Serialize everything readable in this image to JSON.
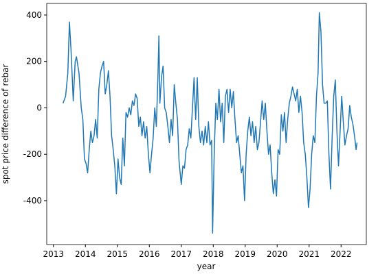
{
  "chart_data": {
    "type": "line",
    "x_label": "year",
    "y_label": "spot price difference of rebar",
    "xlim": [
      2012.79,
      2022.79
    ],
    "ylim": [
      -589,
      450
    ],
    "xticks": [
      2013,
      2014,
      2015,
      2016,
      2017,
      2018,
      2019,
      2020,
      2021,
      2022
    ],
    "yticks": [
      -400,
      -200,
      0,
      200,
      400
    ],
    "grid": false,
    "series": [
      {
        "color": "#1f77b4",
        "x": [
          2013.3,
          2013.38,
          2013.45,
          2013.5,
          2013.55,
          2013.62,
          2013.68,
          2013.72,
          2013.8,
          2013.87,
          2013.92,
          2013.97,
          2014.02,
          2014.07,
          2014.12,
          2014.17,
          2014.22,
          2014.27,
          2014.32,
          2014.37,
          2014.42,
          2014.47,
          2014.52,
          2014.57,
          2014.62,
          2014.67,
          2014.72,
          2014.77,
          2014.82,
          2014.87,
          2014.92,
          2014.97,
          2015.02,
          2015.07,
          2015.12,
          2015.17,
          2015.22,
          2015.27,
          2015.32,
          2015.37,
          2015.42,
          2015.47,
          2015.52,
          2015.57,
          2015.62,
          2015.67,
          2015.72,
          2015.77,
          2015.82,
          2015.87,
          2015.92,
          2015.97,
          2016.02,
          2016.07,
          2016.12,
          2016.17,
          2016.22,
          2016.27,
          2016.3,
          2016.33,
          2016.38,
          2016.43,
          2016.48,
          2016.53,
          2016.58,
          2016.63,
          2016.68,
          2016.73,
          2016.78,
          2016.83,
          2016.88,
          2016.93,
          2017.0,
          2017.05,
          2017.1,
          2017.15,
          2017.2,
          2017.25,
          2017.3,
          2017.35,
          2017.4,
          2017.45,
          2017.5,
          2017.55,
          2017.6,
          2017.65,
          2017.7,
          2017.75,
          2017.8,
          2017.85,
          2017.9,
          2017.95,
          2017.98,
          2018.03,
          2018.08,
          2018.13,
          2018.18,
          2018.23,
          2018.28,
          2018.33,
          2018.38,
          2018.43,
          2018.48,
          2018.53,
          2018.58,
          2018.63,
          2018.68,
          2018.73,
          2018.78,
          2018.83,
          2018.88,
          2018.93,
          2018.98,
          2019.03,
          2019.08,
          2019.13,
          2019.18,
          2019.23,
          2019.28,
          2019.33,
          2019.38,
          2019.43,
          2019.48,
          2019.53,
          2019.58,
          2019.63,
          2019.68,
          2019.73,
          2019.78,
          2019.83,
          2019.88,
          2019.93,
          2019.98,
          2020.03,
          2020.08,
          2020.13,
          2020.18,
          2020.23,
          2020.28,
          2020.33,
          2020.38,
          2020.43,
          2020.48,
          2020.53,
          2020.58,
          2020.63,
          2020.68,
          2020.73,
          2020.78,
          2020.83,
          2020.88,
          2020.93,
          2020.98,
          2021.03,
          2021.08,
          2021.13,
          2021.18,
          2021.23,
          2021.28,
          2021.32,
          2021.37,
          2021.42,
          2021.47,
          2021.52,
          2021.57,
          2021.62,
          2021.67,
          2021.72,
          2021.77,
          2021.82,
          2021.87,
          2021.92,
          2021.97,
          2022.02,
          2022.07,
          2022.12,
          2022.17,
          2022.22,
          2022.27,
          2022.32,
          2022.37,
          2022.42,
          2022.47,
          2022.5
        ],
        "values": [
          20,
          50,
          150,
          370,
          250,
          30,
          200,
          220,
          150,
          0,
          -50,
          -220,
          -240,
          -280,
          -180,
          -100,
          -150,
          -120,
          -50,
          -130,
          80,
          150,
          180,
          200,
          60,
          100,
          160,
          50,
          -120,
          -180,
          -250,
          -370,
          -220,
          -300,
          -330,
          -130,
          -250,
          -20,
          -40,
          0,
          -30,
          30,
          10,
          60,
          40,
          -80,
          -40,
          -120,
          -60,
          -130,
          -80,
          -200,
          -280,
          -200,
          -130,
          0,
          -80,
          140,
          310,
          20,
          130,
          180,
          0,
          -20,
          -80,
          -150,
          -50,
          -120,
          100,
          20,
          -50,
          -230,
          -330,
          -250,
          -260,
          -180,
          -160,
          -90,
          -130,
          0,
          130,
          -50,
          130,
          -80,
          -150,
          -100,
          -160,
          -80,
          -150,
          -60,
          -160,
          -140,
          -540,
          -200,
          20,
          -50,
          80,
          -60,
          20,
          -150,
          50,
          80,
          -20,
          80,
          0,
          70,
          -50,
          -150,
          -120,
          -200,
          -280,
          -250,
          -400,
          -200,
          -100,
          -40,
          -120,
          -60,
          -150,
          -80,
          -180,
          -150,
          -60,
          30,
          -50,
          20,
          -100,
          -200,
          -160,
          -280,
          -370,
          -310,
          -380,
          -180,
          -200,
          -30,
          -100,
          -20,
          -150,
          -50,
          20,
          50,
          90,
          60,
          30,
          80,
          -20,
          50,
          -20,
          -150,
          -200,
          -300,
          -430,
          -350,
          -200,
          -120,
          -150,
          50,
          150,
          410,
          330,
          100,
          20,
          20,
          30,
          -200,
          -350,
          -130,
          50,
          120,
          -100,
          -250,
          -100,
          50,
          -60,
          -160,
          -120,
          -90,
          10,
          -40,
          -70,
          -120,
          -180,
          -150
        ]
      }
    ]
  }
}
